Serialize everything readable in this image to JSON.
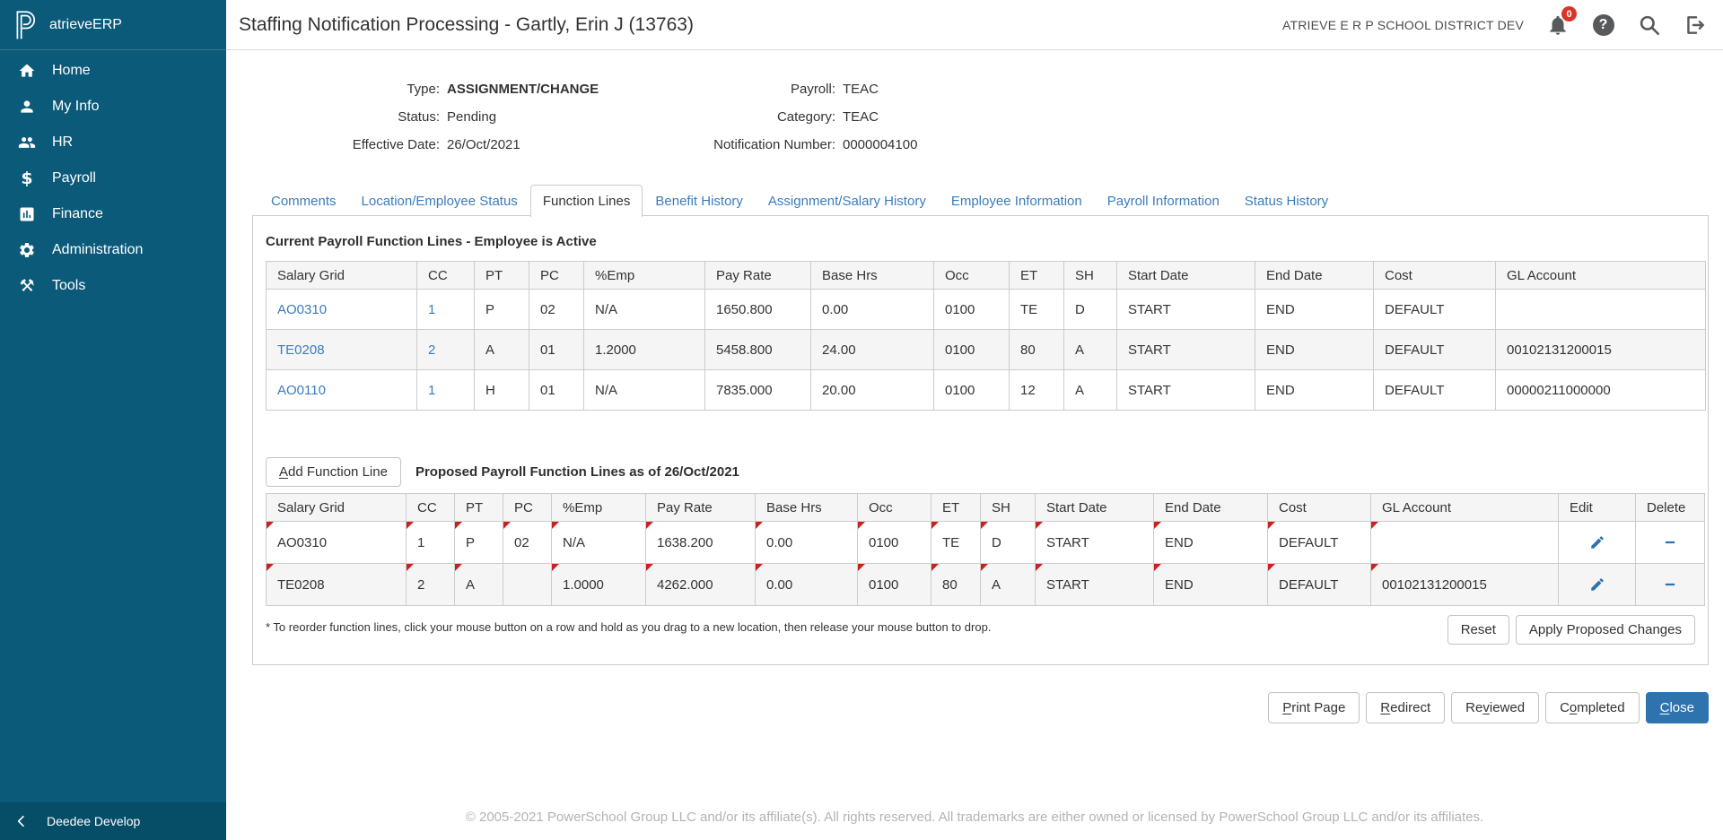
{
  "brand": {
    "app_name": "atrieveERP",
    "logo_icon": "powerschool-logo-icon"
  },
  "sidebar": {
    "items": [
      {
        "label": "Home",
        "icon": "home-icon"
      },
      {
        "label": "My Info",
        "icon": "user-icon"
      },
      {
        "label": "HR",
        "icon": "people-icon"
      },
      {
        "label": "Payroll",
        "icon": "dollar-icon"
      },
      {
        "label": "Finance",
        "icon": "bar-chart-icon"
      },
      {
        "label": "Administration",
        "icon": "gear-icon"
      },
      {
        "label": "Tools",
        "icon": "tools-icon"
      }
    ],
    "footer": {
      "label": "Deedee Develop",
      "icon": "chevron-left-icon"
    }
  },
  "header": {
    "title": "Staffing Notification Processing - Gartly, Erin J (13763)",
    "district": "ATRIEVE E R P SCHOOL DISTRICT DEV",
    "notification_count": "0"
  },
  "info": {
    "left": [
      {
        "label": "Type:",
        "value": "ASSIGNMENT/CHANGE"
      },
      {
        "label": "Status:",
        "value": "Pending"
      },
      {
        "label": "Effective Date:",
        "value": "26/Oct/2021"
      }
    ],
    "right": [
      {
        "label": "Payroll:",
        "value": "TEAC"
      },
      {
        "label": "Category:",
        "value": "TEAC"
      },
      {
        "label": "Notification Number:",
        "value": "0000004100"
      }
    ]
  },
  "tabs": [
    "Comments",
    "Location/Employee Status",
    "Function Lines",
    "Benefit History",
    "Assignment/Salary History",
    "Employee Information",
    "Payroll Information",
    "Status History"
  ],
  "active_tab": "Function Lines",
  "current_section": {
    "title": "Current Payroll Function Lines - Employee is Active",
    "columns": [
      "Salary Grid",
      "CC",
      "PT",
      "PC",
      "%Emp",
      "Pay Rate",
      "Base Hrs",
      "Occ",
      "ET",
      "SH",
      "Start Date",
      "End Date",
      "Cost",
      "GL Account"
    ],
    "rows": [
      [
        "AO0310",
        "1",
        "P",
        "02",
        "N/A",
        "1650.800",
        "0.00",
        "0100",
        "TE",
        "D",
        "START",
        "END",
        "DEFAULT",
        ""
      ],
      [
        "TE0208",
        "2",
        "A",
        "01",
        "1.2000",
        "5458.800",
        "24.00",
        "0100",
        "80",
        "A",
        "START",
        "END",
        "DEFAULT",
        "00102131200015"
      ],
      [
        "AO0110",
        "1",
        "H",
        "01",
        "N/A",
        "7835.000",
        "20.00",
        "0100",
        "12",
        "A",
        "START",
        "END",
        "DEFAULT",
        "00000211000000"
      ]
    ]
  },
  "proposed_section": {
    "add_button": "Add Function Line",
    "add_button_key": "A",
    "title": "Proposed Payroll Function Lines as of 26/Oct/2021",
    "columns": [
      "Salary Grid",
      "CC",
      "PT",
      "PC",
      "%Emp",
      "Pay Rate",
      "Base Hrs",
      "Occ",
      "ET",
      "SH",
      "Start Date",
      "End Date",
      "Cost",
      "GL Account",
      "Edit",
      "Delete"
    ],
    "rows": [
      {
        "cells": [
          "AO0310",
          "1",
          "P",
          "02",
          "N/A",
          "1638.200",
          "0.00",
          "0100",
          "TE",
          "D",
          "START",
          "END",
          "DEFAULT",
          ""
        ],
        "marked": [
          true,
          true,
          true,
          true,
          true,
          true,
          true,
          true,
          true,
          true,
          true,
          true,
          true,
          true
        ]
      },
      {
        "cells": [
          "TE0208",
          "2",
          "A",
          "",
          "1.0000",
          "4262.000",
          "0.00",
          "0100",
          "80",
          "A",
          "START",
          "END",
          "DEFAULT",
          "00102131200015"
        ],
        "marked": [
          true,
          true,
          true,
          false,
          true,
          true,
          true,
          true,
          true,
          true,
          true,
          true,
          true,
          true
        ]
      }
    ],
    "footnote": "* To reorder function lines, click your mouse button on a row and hold as you drag to a new location, then release your mouse button to drop.",
    "reset_label": "Reset",
    "apply_label": "Apply Proposed Changes"
  },
  "actions": [
    {
      "label": "Print Page",
      "key": "P",
      "primary": false
    },
    {
      "label": "Redirect",
      "key": "R",
      "primary": false
    },
    {
      "label": "Reviewed",
      "key": "v",
      "primary": false
    },
    {
      "label": "Completed",
      "key": "o",
      "primary": false
    },
    {
      "label": "Close",
      "key": "C",
      "primary": true
    }
  ],
  "footer": {
    "copyright": "© 2005-2021 PowerSchool Group LLC and/or its affiliate(s). All rights reserved. All trademarks are either owned or licensed by PowerSchool Group LLC and/or its affiliates."
  },
  "colors": {
    "sidebar_teal": "#0b5a7a",
    "sidebar_footer_teal": "#064d68",
    "link_blue": "#3a7cbe",
    "primary_button_blue": "#2e72ae",
    "cell_marker_red": "#cc1f1f",
    "badge_red": "#d9342b"
  }
}
